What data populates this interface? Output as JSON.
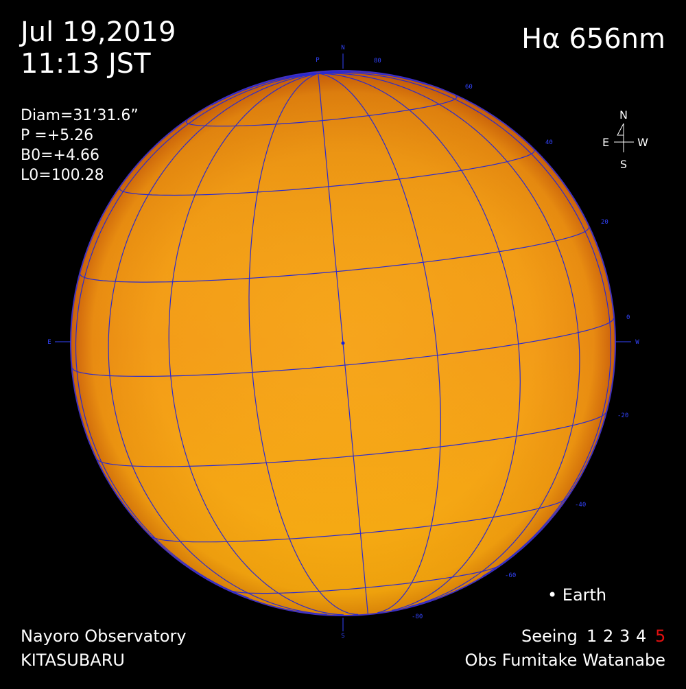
{
  "header": {
    "date": "Jul 19,2019",
    "time": "11:13 JST",
    "band": "Hα 656nm"
  },
  "params": [
    "Diam=31’31.6”",
    "P  =+5.26",
    "B0=+4.66",
    "L0=100.28"
  ],
  "compass": {
    "north": "N",
    "east": "E",
    "west": "W",
    "south": "S"
  },
  "limb_marks": {
    "north": "N",
    "south": "S",
    "east": "E",
    "west": "W",
    "pole": "P"
  },
  "latitude_labels": [
    "80",
    "60",
    "40",
    "20",
    "0",
    "-20",
    "-40",
    "-60",
    "-80"
  ],
  "earth_label": "• Earth",
  "footer": {
    "observatory": "Nayoro Observatory",
    "telescope": "KITASUBARU",
    "seeing_label": "Seeing",
    "seeing_scale": [
      "1",
      "2",
      "3",
      "4",
      "5"
    ],
    "observer": "Obs Fumitake Watanabe"
  }
}
